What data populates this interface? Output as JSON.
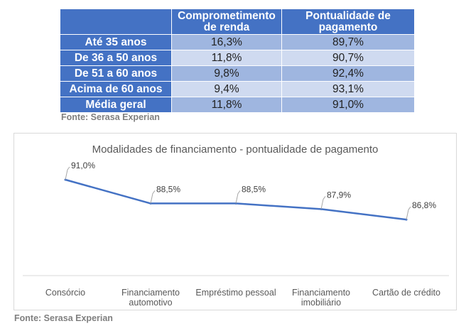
{
  "table": {
    "headers": [
      "",
      "Comprometimento de renda",
      "Pontualidade de pagamento"
    ],
    "rows": [
      {
        "label": "Até 35 anos",
        "comprometimento": "16,3%",
        "pontualidade": "89,7%"
      },
      {
        "label": "De 36 a 50 anos",
        "comprometimento": "11,8%",
        "pontualidade": "90,7%"
      },
      {
        "label": "De 51 a 60 anos",
        "comprometimento": "9,8%",
        "pontualidade": "92,4%"
      },
      {
        "label": "Acima de 60 anos",
        "comprometimento": "9,4%",
        "pontualidade": "93,1%"
      },
      {
        "label": "Média geral",
        "comprometimento": "11,8%",
        "pontualidade": "91,0%"
      }
    ],
    "source": "Fonte: Serasa Experian"
  },
  "chart_data": {
    "type": "line",
    "title": "Modalidades de financiamento - pontualidade de pagamento",
    "categories": [
      "Consórcio",
      "Financiamento automotivo",
      "Empréstimo pessoal",
      "Financiamento imobiliário",
      "Cartão de crédito"
    ],
    "category_lines": [
      [
        "Consórcio"
      ],
      [
        "Financiamento",
        "automotivo"
      ],
      [
        "Empréstimo pessoal"
      ],
      [
        "Financiamento",
        "imobiliário"
      ],
      [
        "Cartão de crédito"
      ]
    ],
    "series": [
      {
        "name": "Pontualidade de pagamento",
        "values": [
          91.0,
          88.5,
          88.5,
          87.9,
          86.8
        ]
      }
    ],
    "data_labels": [
      "91,0%",
      "88,5%",
      "88,5%",
      "87,9%",
      "86,8%"
    ],
    "ylim": [
      80.9,
      91.0
    ],
    "xlabel": "",
    "ylabel": "",
    "grid": false,
    "line_color": "#4472c4",
    "source": "Fonte: Serasa Experian"
  }
}
